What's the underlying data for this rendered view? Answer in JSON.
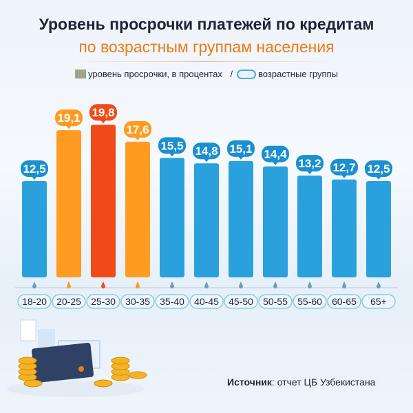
{
  "header": {
    "title": "Уровень просрочки платежей по кредитам",
    "subtitle": "по возрастным группам населения"
  },
  "legend": {
    "values_label": "уровень просрочки, в процентах",
    "separator": "/",
    "groups_label": "возрастные группы"
  },
  "source": {
    "label": "Источник",
    "text": ": отчет ЦБ Узбекистана"
  },
  "colors": {
    "normal": "#2aa1dc",
    "high": "#ff9b20",
    "max": "#f04a18"
  },
  "chart_data": {
    "type": "bar",
    "categories": [
      "18-20",
      "20-25",
      "25-30",
      "30-35",
      "35-40",
      "40-45",
      "45-50",
      "50-55",
      "55-60",
      "60-65",
      "65+"
    ],
    "values": [
      12.5,
      19.1,
      19.8,
      17.6,
      15.5,
      14.8,
      15.1,
      14.4,
      13.2,
      12.7,
      12.5
    ],
    "value_labels": [
      "12,5",
      "19,1",
      "19,8",
      "17,6",
      "15,5",
      "14,8",
      "15,1",
      "14,4",
      "13,2",
      "12,7",
      "12,5"
    ],
    "highlight": [
      "normal",
      "high",
      "max",
      "high",
      "normal",
      "normal",
      "normal",
      "normal",
      "normal",
      "normal",
      "normal"
    ],
    "ylim": [
      0,
      20
    ],
    "grid": false
  }
}
